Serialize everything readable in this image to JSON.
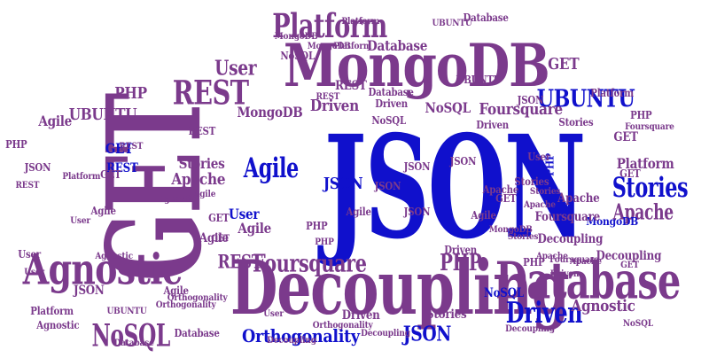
{
  "colors": {
    "purple": "#7b3a8c",
    "blue": "#1010cc"
  },
  "words": [
    {
      "text": "JSON",
      "color": "blue"
    },
    {
      "text": "GET",
      "color": "purple"
    },
    {
      "text": "Decoupling",
      "color": "purple"
    },
    {
      "text": "MongoDB",
      "color": "purple"
    },
    {
      "text": "Database",
      "color": "purple"
    },
    {
      "text": "Agnostic",
      "color": "purple"
    },
    {
      "text": "REST",
      "color": "purple"
    },
    {
      "text": "Platform",
      "color": "purple"
    },
    {
      "text": "Foursquare",
      "color": "purple"
    },
    {
      "text": "NoSQL",
      "color": "purple"
    },
    {
      "text": "Driven",
      "color": "blue"
    },
    {
      "text": "Stories",
      "color": "blue"
    },
    {
      "text": "UBUNTU",
      "color": "blue"
    },
    {
      "text": "Agile",
      "color": "blue"
    },
    {
      "text": "Apache",
      "color": "purple"
    },
    {
      "text": "PHP",
      "color": "purple"
    },
    {
      "text": "Orthogonality",
      "color": "blue"
    },
    {
      "text": "User",
      "color": "purple"
    },
    {
      "text": "GET",
      "color": "purple"
    },
    {
      "text": "Database",
      "color": "purple"
    },
    {
      "text": "PHP",
      "color": "purple"
    },
    {
      "text": "JSON",
      "color": "blue"
    },
    {
      "text": "REST",
      "color": "purple"
    },
    {
      "text": "NoSQL",
      "color": "purple"
    },
    {
      "text": "MongoDB",
      "color": "purple"
    },
    {
      "text": "Driven",
      "color": "purple"
    },
    {
      "text": "Foursquare",
      "color": "purple"
    },
    {
      "text": "Platform",
      "color": "purple"
    },
    {
      "text": "UBUNTU",
      "color": "purple"
    },
    {
      "text": "Agile",
      "color": "purple"
    },
    {
      "text": "Stories",
      "color": "purple"
    },
    {
      "text": "Apache",
      "color": "purple"
    },
    {
      "text": "User",
      "color": "blue"
    },
    {
      "text": "Decoupling",
      "color": "purple"
    },
    {
      "text": "Agnostic",
      "color": "purple"
    },
    {
      "text": "JSON",
      "color": "blue"
    },
    {
      "text": "GET",
      "color": "blue"
    },
    {
      "text": "REST",
      "color": "blue"
    },
    {
      "text": "PHP",
      "color": "blue"
    },
    {
      "text": "MongoDB",
      "color": "blue"
    },
    {
      "text": "Agile",
      "color": "purple"
    },
    {
      "text": "JSON",
      "color": "purple"
    },
    {
      "text": "Driven",
      "color": "purple"
    },
    {
      "text": "NoSQL",
      "color": "blue"
    },
    {
      "text": "GET",
      "color": "purple"
    },
    {
      "text": "Decoupling",
      "color": "purple"
    },
    {
      "text": "Foursquare",
      "color": "purple"
    },
    {
      "text": "Apache",
      "color": "purple"
    },
    {
      "text": "Stories",
      "color": "purple"
    },
    {
      "text": "Platform",
      "color": "purple"
    },
    {
      "text": "Agnostic",
      "color": "purple"
    },
    {
      "text": "User",
      "color": "purple"
    },
    {
      "text": "REST",
      "color": "purple"
    },
    {
      "text": "Database",
      "color": "purple"
    },
    {
      "text": "UBUNTU",
      "color": "purple"
    },
    {
      "text": "Orthogonality",
      "color": "purple"
    },
    {
      "text": "PHP",
      "color": "purple"
    },
    {
      "text": "JSON",
      "color": "purple"
    },
    {
      "text": "GET",
      "color": "purple"
    },
    {
      "text": "Agile",
      "color": "purple"
    },
    {
      "text": "Driven",
      "color": "purple"
    },
    {
      "text": "JSON",
      "color": "purple"
    },
    {
      "text": "Decoupling",
      "color": "purple"
    },
    {
      "text": "GET",
      "color": "purple"
    },
    {
      "text": "NoSQL",
      "color": "purple"
    },
    {
      "text": "MongoDB",
      "color": "purple"
    },
    {
      "text": "Apache",
      "color": "purple"
    },
    {
      "text": "Platform",
      "color": "purple"
    },
    {
      "text": "Agile",
      "color": "purple"
    },
    {
      "text": "REST",
      "color": "purple"
    },
    {
      "text": "User",
      "color": "purple"
    },
    {
      "text": "JSON",
      "color": "purple"
    },
    {
      "text": "Database",
      "color": "purple"
    },
    {
      "text": "Stories",
      "color": "purple"
    },
    {
      "text": "UBUNTU",
      "color": "purple"
    },
    {
      "text": "Foursquare",
      "color": "purple"
    },
    {
      "text": "GET",
      "color": "purple"
    },
    {
      "text": "Agnostic",
      "color": "purple"
    },
    {
      "text": "Orthogonality",
      "color": "purple"
    },
    {
      "text": "PHP",
      "color": "purple"
    },
    {
      "text": "Driven",
      "color": "purple"
    },
    {
      "text": "Agile",
      "color": "purple"
    },
    {
      "text": "User",
      "color": "purple"
    },
    {
      "text": "Platform",
      "color": "purple"
    },
    {
      "text": "Apache",
      "color": "purple"
    },
    {
      "text": "REST",
      "color": "purple"
    },
    {
      "text": "Decoupling",
      "color": "purple"
    },
    {
      "text": "Stories",
      "color": "purple"
    },
    {
      "text": "GET",
      "color": "purple"
    },
    {
      "text": "JSON",
      "color": "purple"
    },
    {
      "text": "PHP",
      "color": "purple"
    },
    {
      "text": "Agile",
      "color": "purple"
    },
    {
      "text": "MongoDB",
      "color": "purple"
    },
    {
      "text": "NoSQL",
      "color": "purple"
    },
    {
      "text": "Database",
      "color": "purple"
    },
    {
      "text": "Driven",
      "color": "purple"
    },
    {
      "text": "Stories",
      "color": "purple"
    },
    {
      "text": "REST",
      "color": "purple"
    },
    {
      "text": "Platform",
      "color": "purple"
    },
    {
      "text": "GET",
      "color": "purple"
    },
    {
      "text": "User",
      "color": "purple"
    },
    {
      "text": "Agile",
      "color": "purple"
    },
    {
      "text": "Apache",
      "color": "purple"
    },
    {
      "text": "JSON",
      "color": "purple"
    },
    {
      "text": "PHP",
      "color": "purple"
    },
    {
      "text": "Decoupling",
      "color": "purple"
    },
    {
      "text": "UBUNTU",
      "color": "purple"
    },
    {
      "text": "Foursquare",
      "color": "purple"
    },
    {
      "text": "Agnostic",
      "color": "purple"
    },
    {
      "text": "Orthogonality",
      "color": "purple"
    },
    {
      "text": "Stories",
      "color": "purple"
    },
    {
      "text": "NoSQL",
      "color": "purple"
    },
    {
      "text": "Database",
      "color": "purple"
    },
    {
      "text": "MongoDB",
      "color": "purple"
    },
    {
      "text": "Driven",
      "color": "purple"
    },
    {
      "text": "REST",
      "color": "purple"
    },
    {
      "text": "GET",
      "color": "purple"
    },
    {
      "text": "User",
      "color": "purple"
    },
    {
      "text": "Platform",
      "color": "purple"
    },
    {
      "text": "Apache",
      "color": "purple"
    },
    {
      "text": "Agile",
      "color": "purple"
    },
    {
      "text": "JSON",
      "color": "purple"
    },
    {
      "text": "PHP",
      "color": "purple"
    }
  ]
}
